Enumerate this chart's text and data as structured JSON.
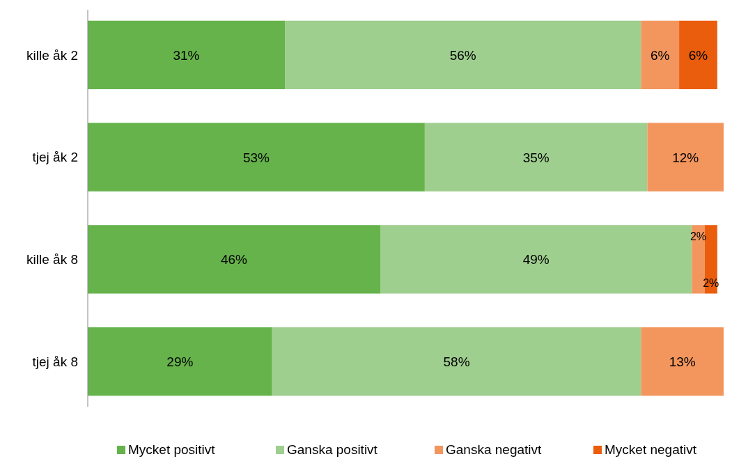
{
  "chart_data": {
    "type": "bar",
    "orientation": "horizontal",
    "stacked": true,
    "categories": [
      "kille åk 2",
      "tjej åk 2",
      "kille åk 8",
      "tjej åk 8"
    ],
    "xlim": [
      0,
      100
    ],
    "tick_labels": "y",
    "legend": "bottom",
    "series": [
      {
        "name": "Mycket positivt",
        "color": "#66b34c",
        "values": [
          31,
          53,
          46,
          29
        ],
        "value_labels": [
          "31%",
          "53%",
          "46%",
          "29%"
        ]
      },
      {
        "name": "Ganska positivt",
        "color": "#9fcf8f",
        "values": [
          56,
          35,
          49,
          58
        ],
        "value_labels": [
          "56%",
          "35%",
          "49%",
          "58%"
        ]
      },
      {
        "name": "Ganska negativt",
        "color": "#f3965e",
        "values": [
          6,
          12,
          2,
          13
        ],
        "value_labels": [
          "6%",
          "12%",
          "2%",
          "13%"
        ]
      },
      {
        "name": "Mycket negativt",
        "color": "#ea5d0c",
        "values": [
          6,
          null,
          2,
          null
        ],
        "value_labels": [
          "6%",
          null,
          "2%",
          null
        ]
      }
    ]
  }
}
